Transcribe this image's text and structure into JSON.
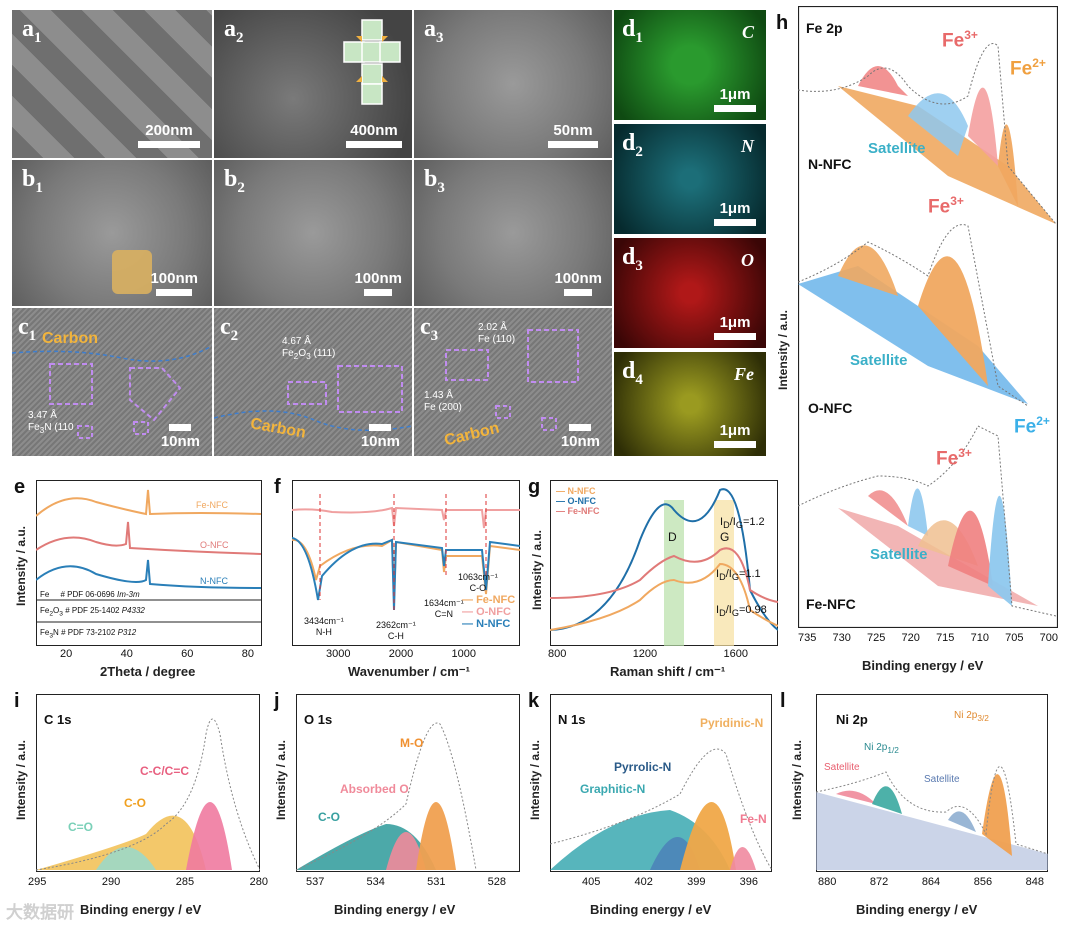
{
  "panels_top": {
    "a1": {
      "letter": "a",
      "sub": "1",
      "scale": "200nm"
    },
    "a2": {
      "letter": "a",
      "sub": "2",
      "scale": "400nm"
    },
    "a3": {
      "letter": "a",
      "sub": "3",
      "scale": "50nm"
    },
    "b1": {
      "letter": "b",
      "sub": "1",
      "scale": "100nm"
    },
    "b2": {
      "letter": "b",
      "sub": "2",
      "scale": "100nm"
    },
    "b3": {
      "letter": "b",
      "sub": "3",
      "scale": "100nm"
    },
    "c1": {
      "letter": "c",
      "sub": "1",
      "scale": "10nm",
      "carbon": "Carbon",
      "d_line1": "3.47 Å",
      "d_line2": "Fe",
      "d_sub": "3",
      "d_line3": "N (110"
    },
    "c2": {
      "letter": "c",
      "sub": "2",
      "scale": "10nm",
      "carbon": "Carbon",
      "d_line1": "4.67 Å",
      "d_line2": "Fe",
      "d_sub": "2",
      "d_line3": "O",
      "d_sub2": "3",
      "d_line4": " (111)"
    },
    "c3": {
      "letter": "c",
      "sub": "3",
      "scale": "10nm",
      "carbon": "Carbon",
      "d_line1": "2.02 Å",
      "d_line2": "Fe (110)",
      "d_line3": "1.43 Å",
      "d_line4": "Fe (200)"
    }
  },
  "maps": [
    {
      "letter": "d",
      "sub": "1",
      "element": "C",
      "scale": "1μm",
      "color": "#1f8a24"
    },
    {
      "letter": "d",
      "sub": "2",
      "element": "N",
      "scale": "1μm",
      "color": "#12606a"
    },
    {
      "letter": "d",
      "sub": "3",
      "element": "O",
      "scale": "1μm",
      "color": "#8c1010"
    },
    {
      "letter": "d",
      "sub": "4",
      "element": "Fe",
      "scale": "1μm",
      "color": "#8a8a18"
    }
  ],
  "panel_e": {
    "label": "e",
    "xlabel": "2Theta / degree",
    "ylabel": "Intensity / a.u.",
    "xticks": [
      "20",
      "40",
      "60",
      "80"
    ],
    "series": [
      {
        "name": "Fe-NFC",
        "color": "#f0a860"
      },
      {
        "name": "O-NFC",
        "color": "#e07a78"
      },
      {
        "name": "N-NFC",
        "color": "#2a7fb8"
      }
    ],
    "refs": [
      {
        "phase": "Fe",
        "pdf": "# PDF 06-0696",
        "sg": "Im-3m"
      },
      {
        "phase": "Fe",
        "sub1": "2",
        "mid": "O",
        "sub2": "3",
        "pdf": "# PDF 25-1402",
        "sg": "P4332"
      },
      {
        "phase": "Fe",
        "sub1": "3",
        "mid": "N",
        "pdf": "# PDF 73-2102",
        "sg": "P312"
      }
    ]
  },
  "panel_f": {
    "label": "f",
    "xlabel": "Wavenumber / cm⁻¹",
    "xticks": [
      "3000",
      "2000",
      "1000"
    ],
    "series": [
      {
        "name": "Fe-NFC",
        "color": "#f0a860"
      },
      {
        "name": "O-NFC",
        "color": "#f0a0a0"
      },
      {
        "name": "N-NFC",
        "color": "#2a7fb8"
      }
    ],
    "peaks": [
      {
        "wn": "3434cm⁻¹",
        "bond": "N-H"
      },
      {
        "wn": "2362cm⁻¹",
        "bond": "C-H"
      },
      {
        "wn": "1634cm⁻¹",
        "bond": "C=N"
      },
      {
        "wn": "1063cm⁻¹",
        "bond": "C-O"
      }
    ]
  },
  "panel_g": {
    "label": "g",
    "xlabel": "Raman shift / cm⁻¹",
    "ylabel": "Intensity / a.u.",
    "xticks": [
      "800",
      "1200",
      "1600"
    ],
    "series": [
      {
        "name": "N-NFC",
        "color": "#f0a860"
      },
      {
        "name": "O-NFC",
        "color": "#1f6fa8"
      },
      {
        "name": "Fe-NFC",
        "color": "#e07a78"
      }
    ],
    "band_D": "D",
    "band_G": "G",
    "ratios": [
      {
        "label": "I",
        "subD": "D",
        "slash": "/I",
        "subG": "G",
        "val": "=1.2"
      },
      {
        "label": "I",
        "subD": "D",
        "slash": "/I",
        "subG": "G",
        "val": "=1.1"
      },
      {
        "label": "I",
        "subD": "D",
        "slash": "/I",
        "subG": "G",
        "val": "=0.98"
      }
    ]
  },
  "panel_h": {
    "label": "h",
    "title": "Fe 2p",
    "xlabel": "Binding energy / eV",
    "ylabel": "Intensity / a.u.",
    "xticks": [
      "735",
      "730",
      "725",
      "720",
      "715",
      "710",
      "705",
      "700"
    ],
    "samples": [
      "N-NFC",
      "O-NFC",
      "Fe-NFC"
    ],
    "satellite": "Satellite",
    "fe3": "Fe",
    "fe3_sup": "3+",
    "fe2": "Fe",
    "fe2_sup": "2+"
  },
  "panel_i": {
    "label": "i",
    "title": "C 1s",
    "xlabel": "Binding energy / eV",
    "ylabel": "Intensity / a.u.",
    "xticks": [
      "295",
      "290",
      "285",
      "280"
    ],
    "peaks": [
      "C-C/C=C",
      "C-O",
      "C=O"
    ]
  },
  "panel_j": {
    "label": "j",
    "title": "O 1s",
    "xlabel": "Binding energy / eV",
    "ylabel": "Intensity / a.u.",
    "xticks": [
      "537",
      "534",
      "531",
      "528"
    ],
    "peaks": [
      "M-O",
      "Absorbed O",
      "C-O"
    ]
  },
  "panel_k": {
    "label": "k",
    "title": "N 1s",
    "xlabel": "Binding energy / eV",
    "ylabel": "Intensity / a.u.",
    "xticks": [
      "405",
      "402",
      "399",
      "396"
    ],
    "peaks": [
      "Pyrrolic-N",
      "Pyridinic-N",
      "Graphitic-N",
      "Fe-N"
    ]
  },
  "panel_l": {
    "label": "l",
    "title": "Ni 2p",
    "xlabel": "Binding energy / eV",
    "ylabel": "Intensity / a.u.",
    "xticks": [
      "880",
      "872",
      "864",
      "856",
      "848"
    ],
    "peak_sat1": "Satellite",
    "peak_sat2": "Satellite",
    "ni12": "Ni 2p",
    "ni12_sub": "1/2",
    "ni32": "Ni 2p",
    "ni32_sub": "3/2"
  },
  "watermark": "大数据研"
}
